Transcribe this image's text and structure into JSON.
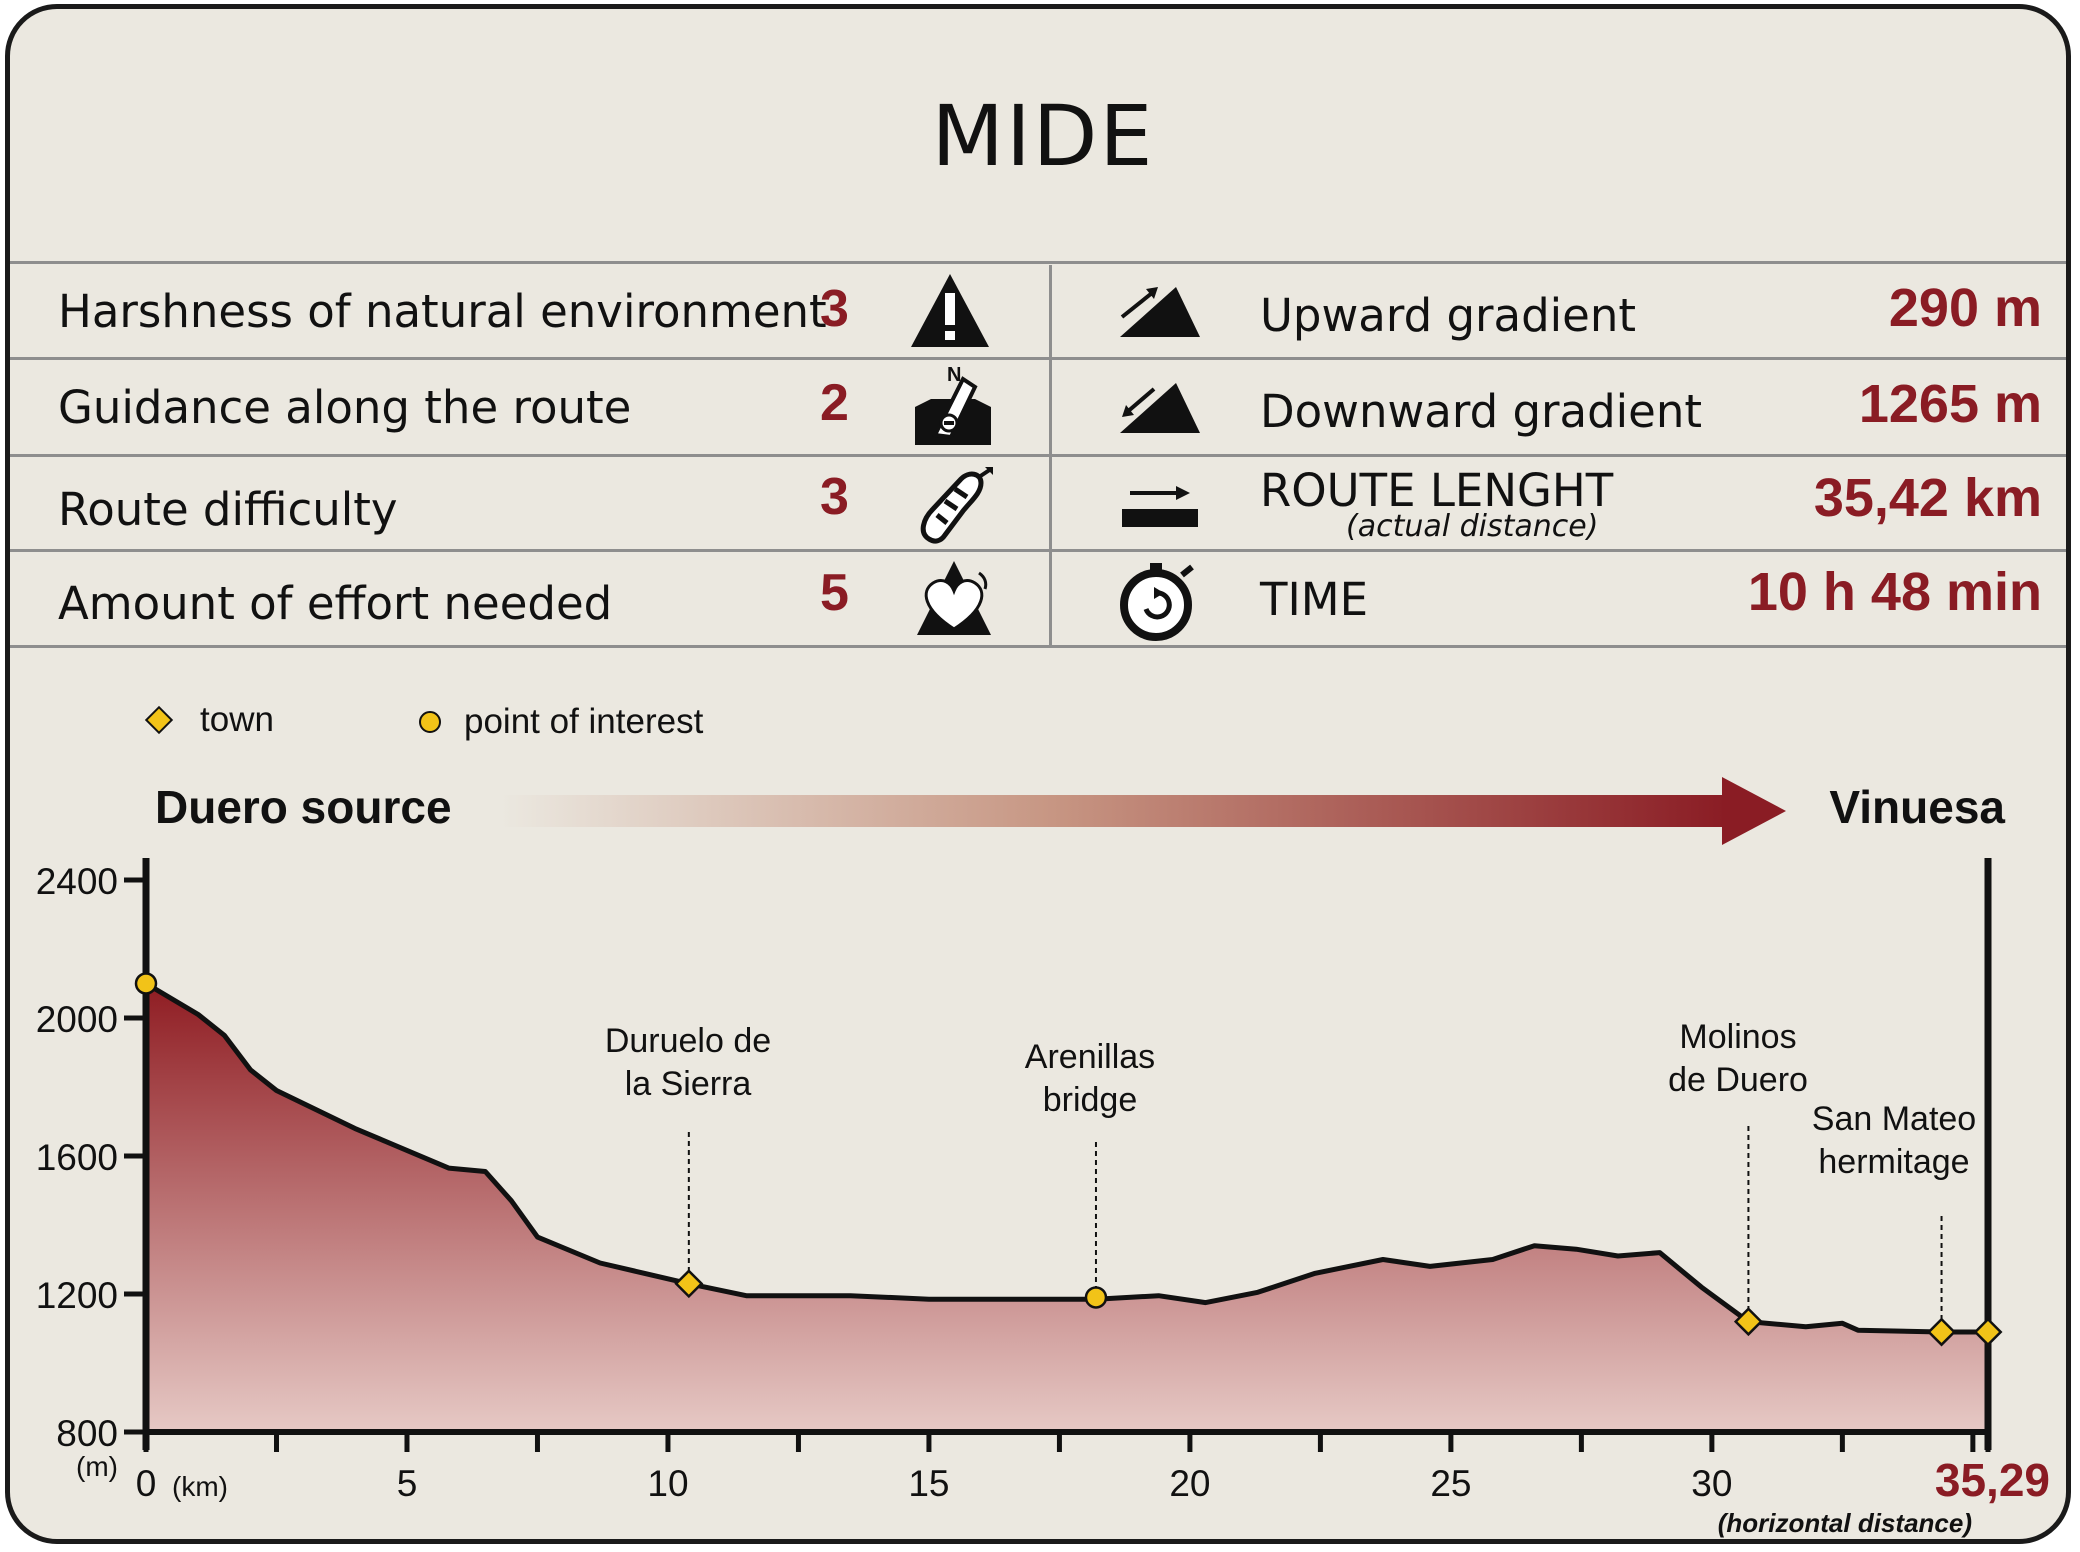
{
  "title": "MIDE",
  "mide_rows": [
    {
      "label": "Harshness of natural environment",
      "value": "3",
      "icon": "warning-icon"
    },
    {
      "label": "Guidance along the route",
      "value": "2",
      "icon": "compass-icon"
    },
    {
      "label": "Route difficulty",
      "value": "3",
      "icon": "footprint-icon"
    },
    {
      "label": "Amount of effort needed",
      "value": "5",
      "icon": "heart-icon"
    }
  ],
  "stats": [
    {
      "label": "Upward gradient",
      "sublabel": "",
      "value": "290 m",
      "icon": "upward-gradient-icon"
    },
    {
      "label": "Downward gradient",
      "sublabel": "",
      "value": "1265 m",
      "icon": "downward-gradient-icon"
    },
    {
      "label": "ROUTE LENGHT",
      "sublabel": "(actual distance)",
      "value": "35,42 km",
      "icon": "route-length-icon"
    },
    {
      "label": "TIME",
      "sublabel": "",
      "value": "10 h 48 min",
      "icon": "stopwatch-icon"
    }
  ],
  "legend": [
    {
      "label": "town",
      "marker": "diamond"
    },
    {
      "label": "point of interest",
      "marker": "circle"
    }
  ],
  "route": {
    "start": "Duero source",
    "end": "Vinuesa"
  },
  "colors": {
    "accent": "#8a1c24",
    "fill_top": "#8f1c22",
    "fill_bottom": "#e6c9c5",
    "marker": "#f2c318",
    "background": "#ebe8e0"
  },
  "chart_data": {
    "type": "area",
    "title": "",
    "xlabel": "(km)",
    "ylabel": "(m)",
    "xlim": [
      0,
      35.29
    ],
    "ylim": [
      800,
      2400
    ],
    "x_ticks": [
      "0",
      "5",
      "10",
      "15",
      "20",
      "25",
      "30"
    ],
    "y_ticks": [
      "800",
      "1200",
      "1600",
      "2000",
      "2400"
    ],
    "end_label": "35,29",
    "end_sublabel": "(horizontal distance)",
    "series": [
      {
        "x": [
          0,
          1,
          1.5,
          2,
          2.5,
          4,
          5.8,
          6.5,
          7,
          7.5,
          8.7,
          10.4,
          11.5,
          13.5,
          15,
          17,
          18.2,
          19.4,
          20.3,
          21.3,
          22.4,
          23.7,
          24.6,
          25.8,
          26.6,
          27.4,
          28.2,
          29,
          29.8,
          30.7,
          31.8,
          32.5,
          32.8,
          34.4,
          35.29
        ],
        "y": [
          2100,
          2010,
          1950,
          1850,
          1790,
          1680,
          1565,
          1555,
          1470,
          1365,
          1290,
          1230,
          1195,
          1195,
          1185,
          1185,
          1185,
          1195,
          1175,
          1205,
          1260,
          1300,
          1280,
          1300,
          1340,
          1330,
          1310,
          1320,
          1220,
          1120,
          1105,
          1115,
          1095,
          1090,
          1090
        ]
      }
    ],
    "annotations": [
      {
        "label_lines": [
          "Duruelo de",
          "la Sierra"
        ],
        "x": 10.4,
        "y": 1230,
        "marker": "diamond"
      },
      {
        "label_lines": [
          "Arenillas",
          "bridge"
        ],
        "x": 18.2,
        "y": 1190,
        "marker": "circle"
      },
      {
        "label_lines": [
          "Molinos",
          "de Duero"
        ],
        "x": 30.7,
        "y": 1120,
        "marker": "diamond"
      },
      {
        "label_lines": [
          "San Mateo",
          "hermitage"
        ],
        "x": 34.4,
        "y": 1090,
        "marker": "diamond"
      }
    ],
    "endpoints": [
      {
        "x": 0,
        "y": 2100,
        "marker": "circle"
      },
      {
        "x": 35.29,
        "y": 1090,
        "marker": "diamond"
      }
    ]
  }
}
